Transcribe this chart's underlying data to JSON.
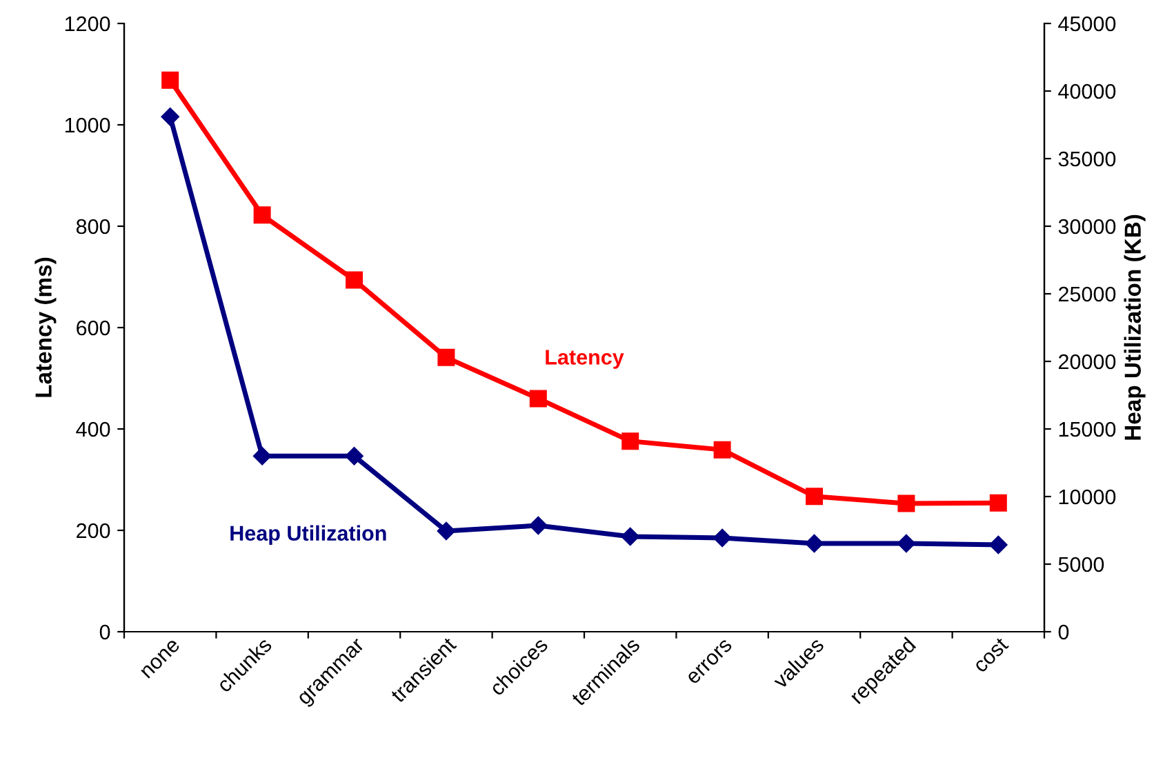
{
  "chart_data": {
    "type": "line",
    "ylabel": "Latency (ms)",
    "y2label": "Heap Utilization (KB)",
    "categories": [
      "none",
      "chunks",
      "grammar",
      "transient",
      "choices",
      "terminals",
      "errors",
      "values",
      "repeated",
      "cost"
    ],
    "series": [
      {
        "name": "Latency",
        "color": "#ff0000",
        "marker": "square",
        "values": [
          1088,
          822,
          694,
          541,
          460,
          376,
          359,
          267,
          253,
          254
        ]
      },
      {
        "name": "Heap Utilization",
        "color": "#000080",
        "marker": "diamond",
        "axis": "y2",
        "values": [
          38100,
          13000,
          13000,
          7450,
          7860,
          7040,
          6940,
          6530,
          6530,
          6430
        ]
      }
    ],
    "ylim": [
      0,
      1200
    ],
    "yticks": [
      0,
      200,
      400,
      600,
      800,
      1000,
      1200
    ],
    "y2lim": [
      0,
      45000
    ],
    "y2ticks": [
      0,
      5000,
      10000,
      15000,
      20000,
      25000,
      30000,
      35000,
      40000,
      45000
    ],
    "grid": false,
    "legend": false,
    "line_style": "solid"
  }
}
